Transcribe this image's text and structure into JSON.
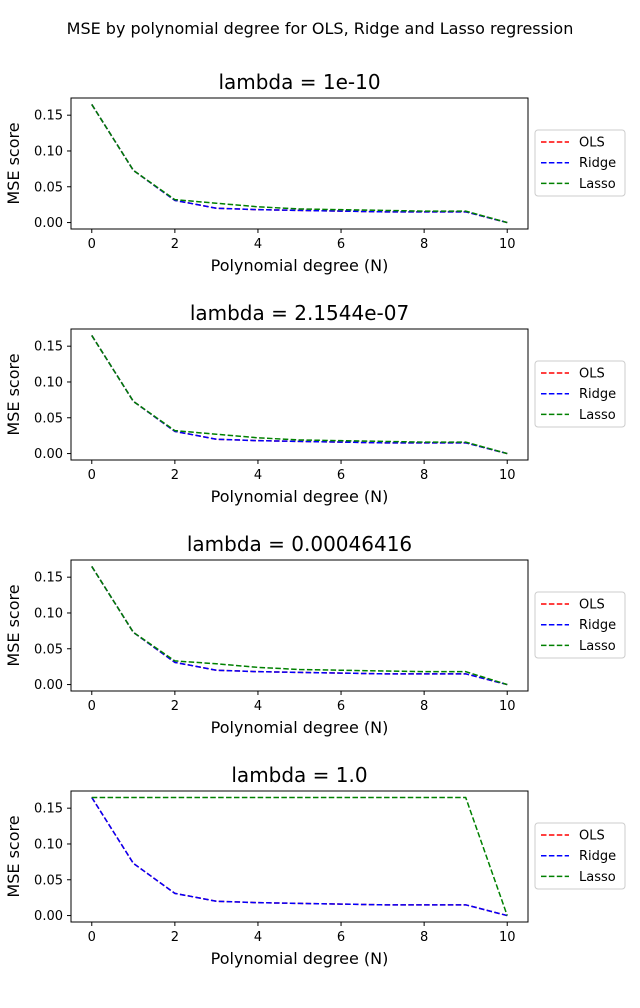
{
  "figure": {
    "suptitle": "MSE by polynomial degree for OLS, Ridge and Lasso regression"
  },
  "series_styles": [
    {
      "name": "OLS",
      "color": "#ff0000",
      "dash": "dashed"
    },
    {
      "name": "Ridge",
      "color": "#0000ff",
      "dash": "dashed"
    },
    {
      "name": "Lasso",
      "color": "#008000",
      "dash": "dashed"
    }
  ],
  "chart_data": [
    {
      "type": "line",
      "title": "lambda = 1e-10",
      "xlabel": "Polynomial degree (N)",
      "ylabel": "MSE score",
      "x": [
        0,
        1,
        2,
        3,
        4,
        5,
        6,
        7,
        8,
        9,
        10
      ],
      "xlim": [
        -0.5,
        10.5
      ],
      "ylim": [
        -0.009,
        0.174
      ],
      "xticks": [
        0,
        2,
        4,
        6,
        8,
        10
      ],
      "yticks": [
        0.0,
        0.05,
        0.1,
        0.15
      ],
      "ytick_labels": [
        "0.00",
        "0.05",
        "0.10",
        "0.15"
      ],
      "grid": false,
      "legend": {
        "position": "right",
        "entries": [
          "OLS",
          "Ridge",
          "Lasso"
        ]
      },
      "series": [
        {
          "name": "OLS",
          "values": [
            0.165,
            0.073,
            0.031,
            0.02,
            0.018,
            0.017,
            0.016,
            0.015,
            0.015,
            0.015,
            0.0
          ]
        },
        {
          "name": "Ridge",
          "values": [
            0.165,
            0.073,
            0.031,
            0.02,
            0.018,
            0.017,
            0.016,
            0.015,
            0.015,
            0.015,
            0.0
          ]
        },
        {
          "name": "Lasso",
          "values": [
            0.165,
            0.073,
            0.032,
            0.027,
            0.022,
            0.019,
            0.018,
            0.017,
            0.016,
            0.016,
            0.0
          ]
        }
      ]
    },
    {
      "type": "line",
      "title": "lambda = 2.1544e-07",
      "xlabel": "Polynomial degree (N)",
      "ylabel": "MSE score",
      "x": [
        0,
        1,
        2,
        3,
        4,
        5,
        6,
        7,
        8,
        9,
        10
      ],
      "xlim": [
        -0.5,
        10.5
      ],
      "ylim": [
        -0.009,
        0.174
      ],
      "xticks": [
        0,
        2,
        4,
        6,
        8,
        10
      ],
      "yticks": [
        0.0,
        0.05,
        0.1,
        0.15
      ],
      "ytick_labels": [
        "0.00",
        "0.05",
        "0.10",
        "0.15"
      ],
      "grid": false,
      "legend": {
        "position": "right",
        "entries": [
          "OLS",
          "Ridge",
          "Lasso"
        ]
      },
      "series": [
        {
          "name": "OLS",
          "values": [
            0.165,
            0.073,
            0.031,
            0.02,
            0.018,
            0.017,
            0.016,
            0.015,
            0.015,
            0.015,
            0.0
          ]
        },
        {
          "name": "Ridge",
          "values": [
            0.165,
            0.073,
            0.031,
            0.02,
            0.018,
            0.017,
            0.016,
            0.015,
            0.015,
            0.015,
            0.0
          ]
        },
        {
          "name": "Lasso",
          "values": [
            0.165,
            0.073,
            0.032,
            0.027,
            0.022,
            0.019,
            0.018,
            0.017,
            0.016,
            0.016,
            0.0
          ]
        }
      ]
    },
    {
      "type": "line",
      "title": "lambda = 0.00046416",
      "xlabel": "Polynomial degree (N)",
      "ylabel": "MSE score",
      "x": [
        0,
        1,
        2,
        3,
        4,
        5,
        6,
        7,
        8,
        9,
        10
      ],
      "xlim": [
        -0.5,
        10.5
      ],
      "ylim": [
        -0.009,
        0.174
      ],
      "xticks": [
        0,
        2,
        4,
        6,
        8,
        10
      ],
      "yticks": [
        0.0,
        0.05,
        0.1,
        0.15
      ],
      "ytick_labels": [
        "0.00",
        "0.05",
        "0.10",
        "0.15"
      ],
      "grid": false,
      "legend": {
        "position": "right",
        "entries": [
          "OLS",
          "Ridge",
          "Lasso"
        ]
      },
      "series": [
        {
          "name": "OLS",
          "values": [
            0.165,
            0.073,
            0.031,
            0.02,
            0.018,
            0.017,
            0.016,
            0.015,
            0.015,
            0.015,
            0.0
          ]
        },
        {
          "name": "Ridge",
          "values": [
            0.165,
            0.073,
            0.031,
            0.02,
            0.018,
            0.017,
            0.016,
            0.015,
            0.015,
            0.015,
            0.0
          ]
        },
        {
          "name": "Lasso",
          "values": [
            0.165,
            0.073,
            0.033,
            0.029,
            0.024,
            0.021,
            0.02,
            0.019,
            0.018,
            0.018,
            0.0
          ]
        }
      ]
    },
    {
      "type": "line",
      "title": "lambda = 1.0",
      "xlabel": "Polynomial degree (N)",
      "ylabel": "MSE score",
      "x": [
        0,
        1,
        2,
        3,
        4,
        5,
        6,
        7,
        8,
        9,
        10
      ],
      "xlim": [
        -0.5,
        10.5
      ],
      "ylim": [
        -0.009,
        0.174
      ],
      "xticks": [
        0,
        2,
        4,
        6,
        8,
        10
      ],
      "yticks": [
        0.0,
        0.05,
        0.1,
        0.15
      ],
      "ytick_labels": [
        "0.00",
        "0.05",
        "0.10",
        "0.15"
      ],
      "grid": false,
      "legend": {
        "position": "right",
        "entries": [
          "OLS",
          "Ridge",
          "Lasso"
        ]
      },
      "series": [
        {
          "name": "OLS",
          "values": [
            0.165,
            0.073,
            0.031,
            0.02,
            0.018,
            0.017,
            0.016,
            0.015,
            0.015,
            0.015,
            0.0
          ]
        },
        {
          "name": "Ridge",
          "values": [
            0.165,
            0.073,
            0.031,
            0.02,
            0.018,
            0.017,
            0.016,
            0.015,
            0.015,
            0.015,
            0.0
          ]
        },
        {
          "name": "Lasso",
          "values": [
            0.165,
            0.165,
            0.165,
            0.165,
            0.165,
            0.165,
            0.165,
            0.165,
            0.165,
            0.165,
            0.0
          ]
        }
      ]
    }
  ]
}
